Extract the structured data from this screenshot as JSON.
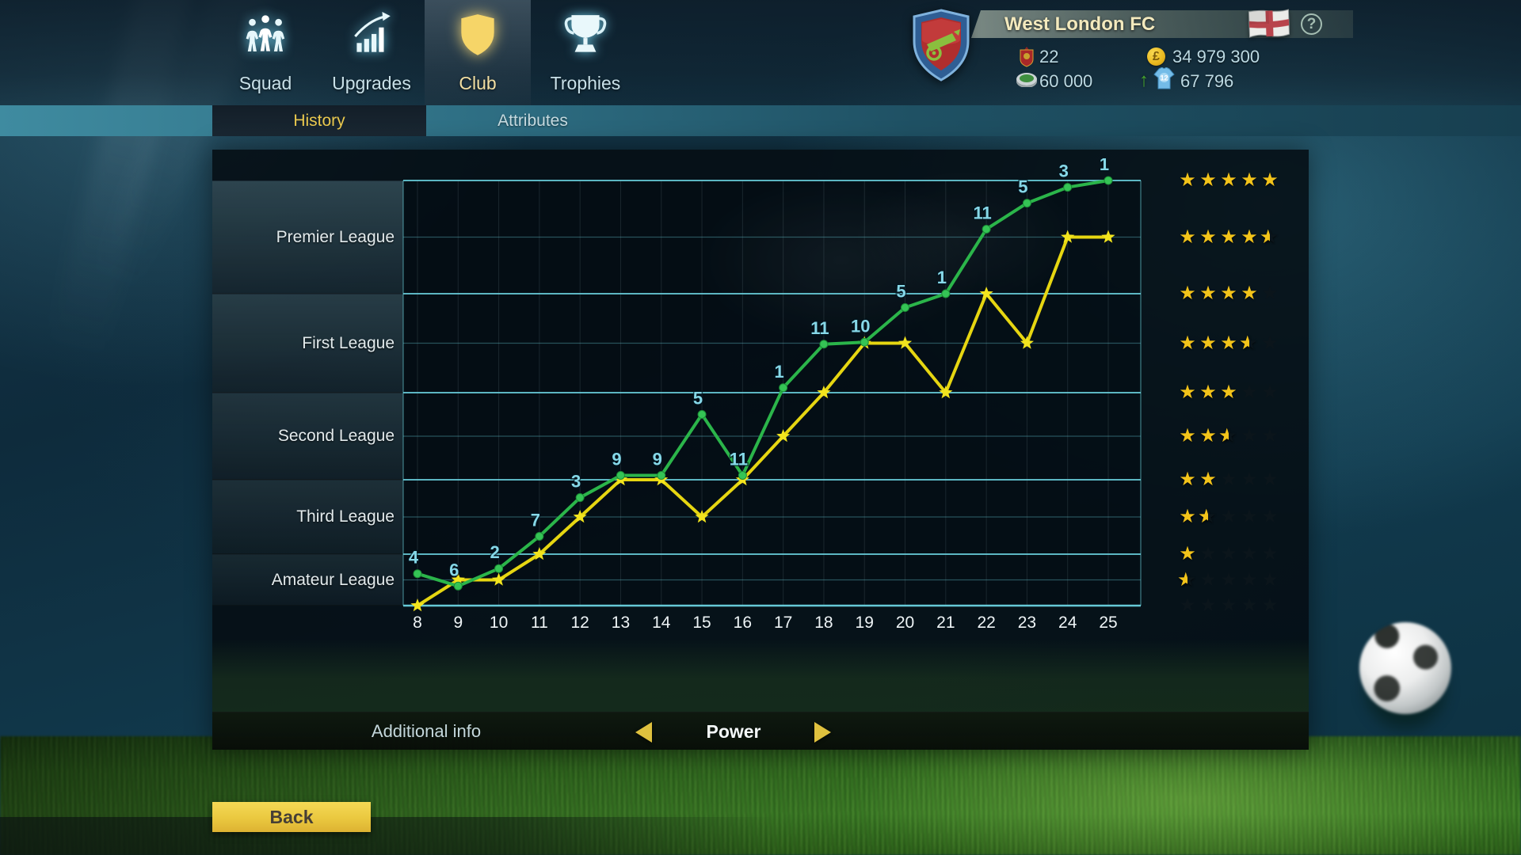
{
  "nav": {
    "tabs": [
      {
        "label": "Squad",
        "icon": "squad-icon",
        "selected": false
      },
      {
        "label": "Upgrades",
        "icon": "upgrades-icon",
        "selected": false
      },
      {
        "label": "Club",
        "icon": "club-shield-icon",
        "selected": true
      },
      {
        "label": "Trophies",
        "icon": "trophy-icon",
        "selected": false
      }
    ]
  },
  "subnav": {
    "tabs": [
      {
        "label": "History",
        "selected": true
      },
      {
        "label": "Attributes",
        "selected": false
      }
    ]
  },
  "club_header": {
    "name": "West London FC",
    "country_flag": "england-flag",
    "help_label": "?",
    "stats": [
      {
        "icon": "pennant-icon",
        "value": "22"
      },
      {
        "icon": "pound-coin-icon",
        "value": "34 979 300",
        "coin_symbol": "£"
      },
      {
        "icon": "stadium-icon",
        "value": "60 000"
      },
      {
        "icon": "shirt-12-icon",
        "value": "67 796",
        "trend": "up",
        "shirt_number": "12"
      }
    ]
  },
  "chart_data": {
    "type": "line",
    "x": [
      8,
      9,
      10,
      11,
      12,
      13,
      14,
      15,
      16,
      17,
      18,
      19,
      20,
      21,
      22,
      23,
      24,
      25
    ],
    "x_axis_note": "seasons",
    "leagues": [
      "Premier League",
      "First League",
      "Second League",
      "Third League",
      "Amateur League"
    ],
    "y_scale_note": "league-units: 0 = top of Premier League band, 5 = bottom of Amateur League band",
    "series": [
      {
        "name": "club_result",
        "color": "#2bb54a",
        "marker": "circle",
        "values": [
          4.38,
          4.62,
          4.28,
          3.76,
          3.24,
          2.95,
          2.95,
          2.25,
          2.95,
          1.95,
          1.51,
          1.49,
          1.14,
          1.0,
          0.43,
          0.2,
          0.06,
          0.0
        ],
        "point_labels": [
          "4",
          "6",
          "2",
          "7",
          "3",
          "9",
          "9",
          "5",
          "11",
          "1",
          "11",
          "10",
          "5",
          "1",
          "11",
          "5",
          "3",
          "1"
        ]
      },
      {
        "name": "power",
        "color": "#e6d611",
        "marker": "star",
        "values": [
          5.0,
          4.5,
          4.5,
          4.0,
          3.5,
          3.0,
          3.0,
          3.5,
          3.0,
          2.5,
          2.0,
          1.5,
          1.5,
          2.0,
          1.0,
          1.5,
          0.5,
          0.5
        ],
        "point_labels": []
      }
    ],
    "point_label_color": "#86d8e8",
    "grid_color": "#6cd4e0",
    "star_ratings": [
      5,
      4.5,
      4,
      3.5,
      3,
      2.5,
      2,
      1.5,
      1,
      0.5,
      0
    ],
    "star_filled_color": "#f3c41a",
    "legend_position": "none",
    "grid": true
  },
  "footer": {
    "label": "Additional info",
    "selector_value": "Power"
  },
  "back_button": {
    "label": "Back"
  }
}
